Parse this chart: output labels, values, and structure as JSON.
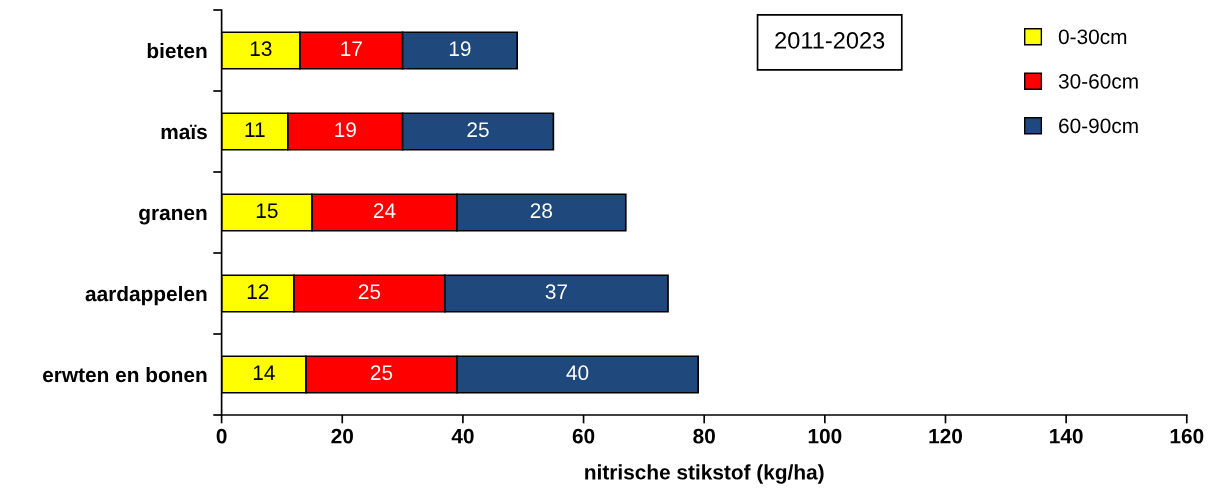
{
  "chart_data": {
    "type": "bar",
    "orientation": "horizontal",
    "stacked": true,
    "data_labels": true,
    "categories": [
      "bieten",
      "maïs",
      "granen",
      "aardappelen",
      "erwten en bonen"
    ],
    "series": [
      {
        "name": "0-30cm",
        "color": "#ffff00",
        "values": [
          13,
          11,
          15,
          12,
          14
        ]
      },
      {
        "name": "30-60cm",
        "color": "#ff0000",
        "values": [
          17,
          19,
          24,
          25,
          25
        ]
      },
      {
        "name": "60-90cm",
        "color": "#1f497d",
        "values": [
          19,
          25,
          28,
          37,
          40
        ]
      }
    ],
    "xlabel": "nitrische stikstof (kg/ha)",
    "xlim": [
      0,
      160
    ],
    "xticks": [
      0,
      20,
      40,
      60,
      80,
      100,
      120,
      140,
      160
    ],
    "annotations": [
      "2011-2023"
    ],
    "legend": "top right",
    "grid": false
  }
}
